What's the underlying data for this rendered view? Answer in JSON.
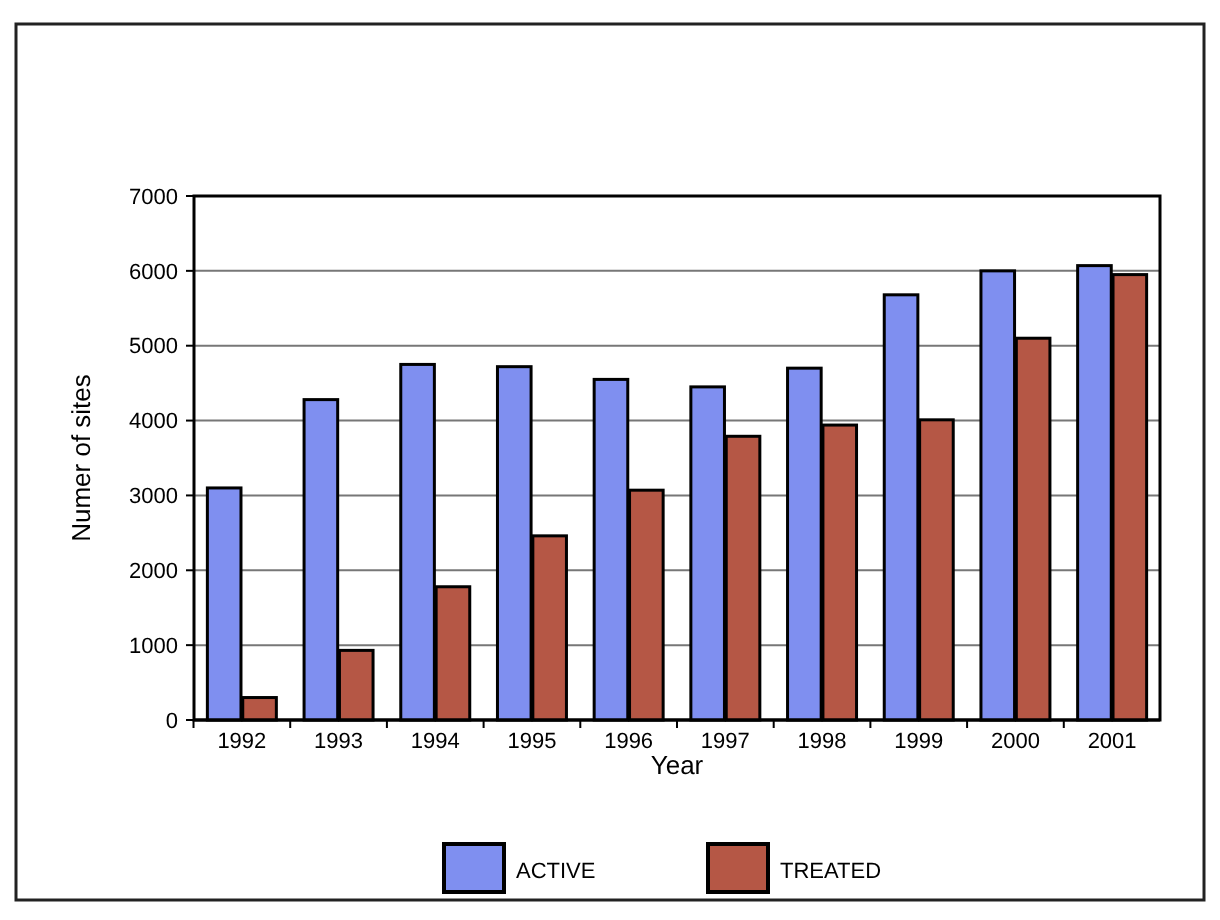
{
  "chart_data": {
    "type": "bar",
    "xlabel": "Year",
    "ylabel": "Numer of sites",
    "categories": [
      "1992",
      "1993",
      "1994",
      "1995",
      "1996",
      "1997",
      "1998",
      "1999",
      "2000",
      "2001"
    ],
    "series": [
      {
        "name": "ACTIVE",
        "color": "#7f8ff0",
        "values": [
          3100,
          4280,
          4750,
          4720,
          4550,
          4450,
          4700,
          5680,
          6000,
          6070
        ]
      },
      {
        "name": "TREATED",
        "color": "#b55745",
        "values": [
          300,
          930,
          1780,
          2460,
          3070,
          3790,
          3940,
          4010,
          5100,
          5950
        ]
      }
    ],
    "ylim": [
      0,
      7000
    ],
    "yticks": [
      0,
      1000,
      2000,
      3000,
      4000,
      5000,
      6000,
      7000
    ],
    "grid": "y",
    "legend": "bottom"
  }
}
